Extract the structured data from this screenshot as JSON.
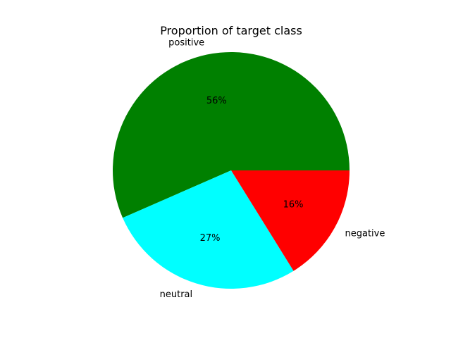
{
  "chart_data": {
    "type": "pie",
    "title": "Proportion of target class",
    "start_angle_deg": 0,
    "direction": "counterclockwise",
    "slices": [
      {
        "label": "positive",
        "value": 56,
        "pct_label": "56%",
        "color": "#008000"
      },
      {
        "label": "neutral",
        "value": 27,
        "pct_label": "27%",
        "color": "#00ffff"
      },
      {
        "label": "negative",
        "value": 16,
        "pct_label": "16%",
        "color": "#ff0000"
      }
    ],
    "legend": "none"
  }
}
